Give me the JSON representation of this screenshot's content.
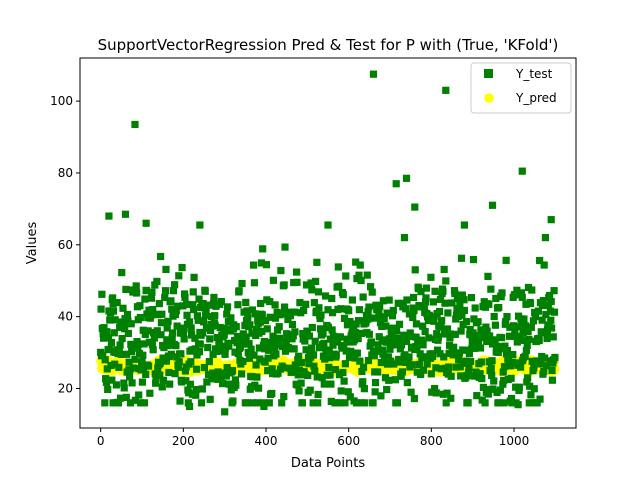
{
  "chart_data": {
    "type": "scatter",
    "title": "SupportVectorRegression Pred & Test for P with (True, 'KFold')",
    "xlabel": "Data Points",
    "ylabel": "Values",
    "xlim": [
      -50,
      1150
    ],
    "ylim": [
      9,
      112
    ],
    "xticks": [
      0,
      200,
      400,
      600,
      800,
      1000
    ],
    "yticks": [
      20,
      40,
      60,
      80,
      100
    ],
    "grid": false,
    "legend_position": "top-right",
    "n_points": 1100,
    "series": [
      {
        "name": "Y_test",
        "marker": "square",
        "color": "#008000",
        "notable_values": [
          {
            "x": 83,
            "y": 93.5
          },
          {
            "x": 660,
            "y": 107.5
          },
          {
            "x": 835,
            "y": 103.0
          },
          {
            "x": 1020,
            "y": 80.5
          },
          {
            "x": 740,
            "y": 78.5
          },
          {
            "x": 715,
            "y": 77.0
          },
          {
            "x": 948,
            "y": 71.0
          },
          {
            "x": 760,
            "y": 70.5
          },
          {
            "x": 60,
            "y": 68.5
          },
          {
            "x": 20,
            "y": 68.0
          },
          {
            "x": 1090,
            "y": 67.0
          },
          {
            "x": 110,
            "y": 66.0
          },
          {
            "x": 240,
            "y": 65.5
          },
          {
            "x": 550,
            "y": 65.5
          },
          {
            "x": 880,
            "y": 65.5
          },
          {
            "x": 300,
            "y": 13.5
          },
          {
            "x": 215,
            "y": 15.0
          },
          {
            "x": 395,
            "y": 15.0
          },
          {
            "x": 30,
            "y": 16.0
          },
          {
            "x": 1010,
            "y": 15.5
          }
        ],
        "typical_range": [
          18,
          55
        ],
        "mean": 33
      },
      {
        "name": "Y_pred",
        "marker": "circle",
        "color": "#ffff00",
        "typical_range": [
          24.5,
          28
        ],
        "mean": 26
      }
    ]
  }
}
